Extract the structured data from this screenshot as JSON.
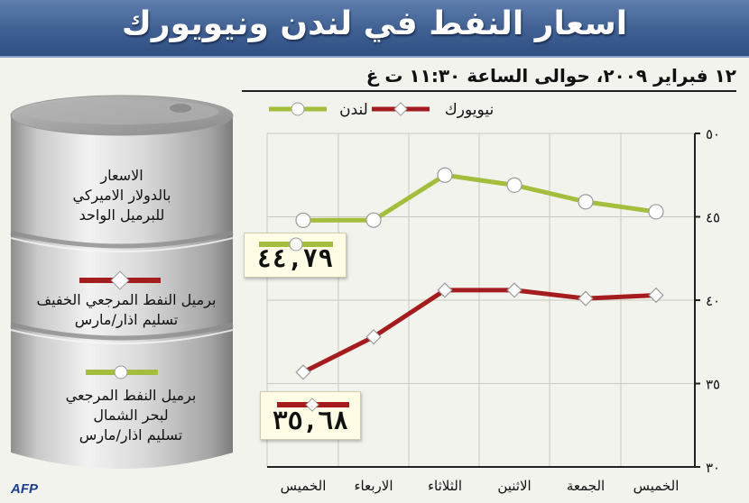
{
  "header": {
    "title": "اسعار النفط في لندن ونيويورك",
    "subtitle": "١٢ فبراير ٢٠٠٩، حوالى الساعة ١١:٣٠ ت غ"
  },
  "barrel": {
    "heading_lines": [
      "الاسعار",
      "بالدولار الاميركي",
      "للبرميل الواحد"
    ],
    "legend_light": [
      "برميل النفط المرجعي الخفيف",
      "تسليم اذار/مارس"
    ],
    "legend_brent": [
      "برميل النفط المرجعي",
      "لبحر الشمال",
      "تسليم اذار/مارس"
    ]
  },
  "callouts": {
    "london_value": "٤٤,٧٩",
    "newyork_value": "٣٥,٦٨"
  },
  "credit": "AFP",
  "colors": {
    "london": "#a3bd3c",
    "newyork": "#a51c1f",
    "title_bar": "#3f5f92"
  },
  "chart_data": {
    "type": "line",
    "categories": [
      "الخميس",
      "الاربعاء",
      "الثلاثاء",
      "الاثنين",
      "الجمعة",
      "الخميس"
    ],
    "y_tick_labels": [
      "٣٠",
      "٣٥",
      "٤٠",
      "٤٥",
      "٥٠"
    ],
    "y_ticks": [
      30,
      35,
      40,
      45,
      50
    ],
    "ylim": [
      30,
      50
    ],
    "y_axis_side": "right",
    "grid": true,
    "legend_placement": "top",
    "series": [
      {
        "name": "لندن",
        "color": "#a3bd3c",
        "marker": "circle",
        "values": [
          44.79,
          44.8,
          47.5,
          46.9,
          45.9,
          45.3
        ]
      },
      {
        "name": "نيويورك",
        "color": "#a51c1f",
        "marker": "diamond",
        "values": [
          35.68,
          37.8,
          40.6,
          40.6,
          40.1,
          40.3
        ]
      }
    ]
  }
}
